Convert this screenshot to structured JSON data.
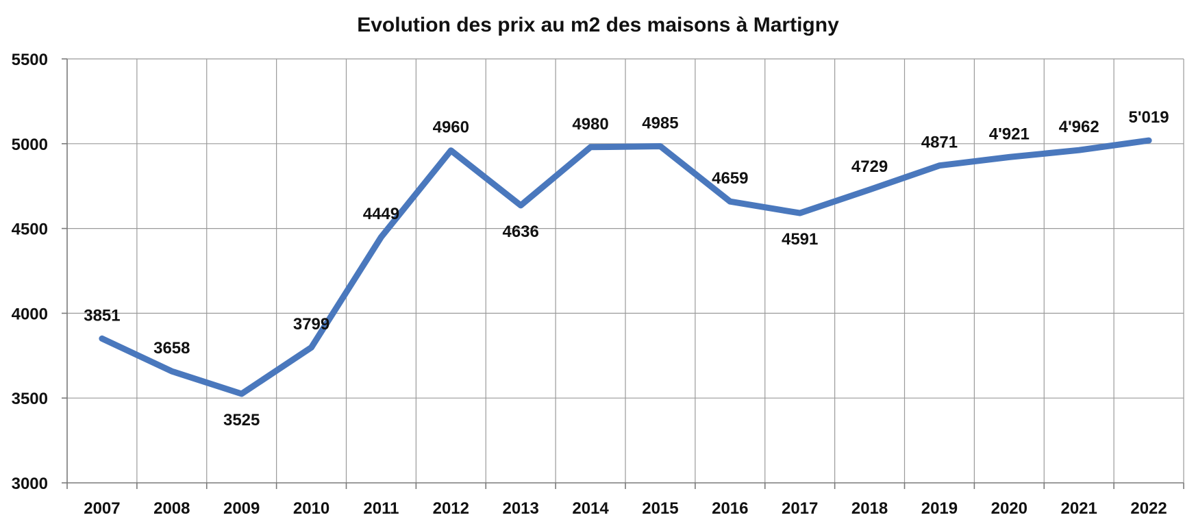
{
  "chart_data": {
    "type": "line",
    "title": "Evolution des prix au m2 des maisons à Martigny",
    "xlabel": "",
    "ylabel": "",
    "ylim": [
      3000,
      5500
    ],
    "yticks": [
      "3000",
      "3500",
      "4000",
      "4500",
      "5000",
      "5500"
    ],
    "grid": true,
    "categories": [
      "2007",
      "2008",
      "2009",
      "2010",
      "2011",
      "2012",
      "2013",
      "2014",
      "2015",
      "2016",
      "2017",
      "2018",
      "2019",
      "2020",
      "2021",
      "2022"
    ],
    "series": [
      {
        "values": [
          3851,
          3658,
          3525,
          3799,
          4449,
          4960,
          4636,
          4980,
          4985,
          4659,
          4591,
          4729,
          4871,
          4921,
          4962,
          5019
        ],
        "labels": [
          "3851",
          "3658",
          "3525",
          "3799",
          "4449",
          "4960",
          "4636",
          "4980",
          "4985",
          "4659",
          "4591",
          "4729",
          "4871",
          "4'921",
          "4'962",
          "5'019"
        ],
        "color": "#4a78bd"
      }
    ]
  }
}
